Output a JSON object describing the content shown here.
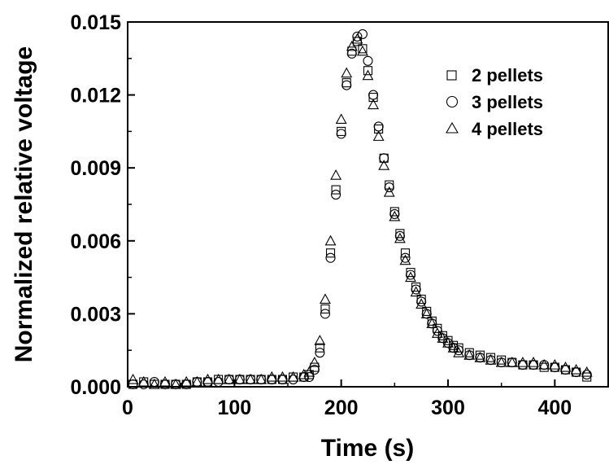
{
  "chart_data": {
    "type": "scatter",
    "xlabel": "Time (s)",
    "ylabel": "Normalized relative voltage",
    "xlim": [
      0,
      450
    ],
    "ylim": [
      0,
      0.015
    ],
    "x_ticks": [
      0,
      100,
      200,
      300,
      400
    ],
    "x_tick_labels": [
      "0",
      "100",
      "200",
      "300",
      "400"
    ],
    "y_ticks": [
      0,
      0.003,
      0.006,
      0.009,
      0.012,
      0.015
    ],
    "y_tick_labels": [
      "0.000",
      "0.003",
      "0.006",
      "0.009",
      "0.012",
      "0.015"
    ],
    "grid": false,
    "legend_position": "top-right",
    "series": [
      {
        "name": "2 pellets",
        "marker": "square",
        "x": [
          5,
          15,
          25,
          35,
          45,
          55,
          65,
          75,
          85,
          95,
          105,
          115,
          125,
          135,
          145,
          155,
          165,
          170,
          175,
          180,
          185,
          190,
          195,
          200,
          205,
          210,
          215,
          220,
          225,
          230,
          235,
          240,
          245,
          250,
          255,
          260,
          265,
          270,
          275,
          280,
          285,
          290,
          295,
          300,
          305,
          310,
          320,
          330,
          340,
          350,
          360,
          370,
          380,
          390,
          400,
          410,
          420,
          430
        ],
        "y": [
          0.0001,
          0.0002,
          0.0001,
          0.0001,
          0.0001,
          0.0001,
          0.0002,
          0.0002,
          0.0003,
          0.0003,
          0.0003,
          0.0003,
          0.0003,
          0.0003,
          0.0003,
          0.0004,
          0.0004,
          0.0005,
          0.0008,
          0.0016,
          0.0032,
          0.0055,
          0.0081,
          0.0105,
          0.0125,
          0.0138,
          0.0142,
          0.0139,
          0.013,
          0.0119,
          0.0106,
          0.0094,
          0.0083,
          0.0072,
          0.0063,
          0.0055,
          0.0047,
          0.0041,
          0.0036,
          0.0031,
          0.0027,
          0.0024,
          0.0021,
          0.0019,
          0.0017,
          0.0016,
          0.0014,
          0.0013,
          0.0012,
          0.0011,
          0.001,
          0.0009,
          0.0009,
          0.0008,
          0.0008,
          0.0007,
          0.0006,
          0.0004
        ]
      },
      {
        "name": "3 pellets",
        "marker": "circle",
        "x": [
          5,
          15,
          25,
          35,
          45,
          55,
          65,
          75,
          85,
          95,
          105,
          115,
          125,
          135,
          145,
          155,
          165,
          170,
          175,
          180,
          185,
          190,
          195,
          200,
          205,
          210,
          215,
          220,
          225,
          230,
          235,
          240,
          245,
          250,
          255,
          260,
          265,
          270,
          275,
          280,
          285,
          290,
          295,
          300,
          305,
          310,
          320,
          330,
          340,
          350,
          360,
          370,
          380,
          390,
          400,
          410,
          420,
          430
        ],
        "y": [
          0.0001,
          0.0001,
          0.0002,
          0.0001,
          0.0001,
          0.0001,
          0.0002,
          0.0002,
          0.0002,
          0.0003,
          0.0003,
          0.0003,
          0.0003,
          0.0003,
          0.0003,
          0.0003,
          0.0004,
          0.0004,
          0.0007,
          0.0014,
          0.003,
          0.0053,
          0.0079,
          0.0104,
          0.0124,
          0.0137,
          0.0144,
          0.0145,
          0.0134,
          0.012,
          0.0107,
          0.0094,
          0.0082,
          0.0071,
          0.0062,
          0.0053,
          0.0046,
          0.004,
          0.0035,
          0.003,
          0.0026,
          0.0023,
          0.002,
          0.0018,
          0.0016,
          0.0015,
          0.0013,
          0.0012,
          0.0011,
          0.001,
          0.001,
          0.0009,
          0.0009,
          0.0009,
          0.0008,
          0.0007,
          0.0006,
          0.0005
        ]
      },
      {
        "name": "4 pellets",
        "marker": "triangle",
        "x": [
          5,
          15,
          25,
          35,
          45,
          55,
          65,
          75,
          85,
          95,
          105,
          115,
          125,
          135,
          145,
          155,
          165,
          170,
          175,
          180,
          185,
          190,
          195,
          200,
          205,
          210,
          215,
          220,
          225,
          230,
          235,
          240,
          245,
          250,
          255,
          260,
          265,
          270,
          275,
          280,
          285,
          290,
          295,
          300,
          305,
          310,
          320,
          330,
          340,
          350,
          360,
          370,
          380,
          390,
          400,
          410,
          420,
          430
        ],
        "y": [
          0.0003,
          0.0002,
          0.0001,
          0.0002,
          0.0001,
          0.0002,
          0.0002,
          0.0003,
          0.0003,
          0.0003,
          0.0003,
          0.0003,
          0.0003,
          0.0004,
          0.0004,
          0.0004,
          0.0005,
          0.0006,
          0.001,
          0.0019,
          0.0036,
          0.006,
          0.0087,
          0.011,
          0.0129,
          0.014,
          0.0143,
          0.0138,
          0.0128,
          0.0116,
          0.0103,
          0.0091,
          0.008,
          0.007,
          0.0061,
          0.0052,
          0.0045,
          0.0039,
          0.0034,
          0.003,
          0.0026,
          0.0022,
          0.002,
          0.0018,
          0.0016,
          0.0014,
          0.0013,
          0.0012,
          0.0011,
          0.001,
          0.001,
          0.001,
          0.001,
          0.0009,
          0.0009,
          0.0008,
          0.0007,
          0.0006
        ]
      }
    ]
  }
}
